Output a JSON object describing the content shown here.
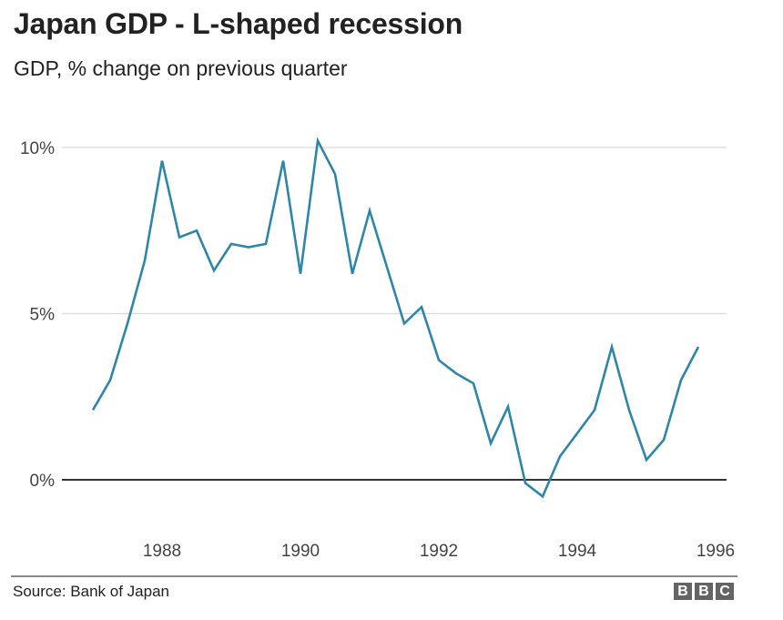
{
  "chart_data": {
    "type": "line",
    "title": "Japan GDP - L-shaped recession",
    "subtitle": "GDP, % change on previous quarter",
    "xlabel": "",
    "ylabel": "",
    "ylim": [
      -1,
      10.5
    ],
    "xlim": [
      1986.75,
      1996.1
    ],
    "y_ticks": [
      {
        "value": 10,
        "label": "10%"
      },
      {
        "value": 5,
        "label": "5%"
      },
      {
        "value": 0,
        "label": "0%"
      }
    ],
    "x_ticks": [
      {
        "value": 1988,
        "label": "1988"
      },
      {
        "value": 1990,
        "label": "1990"
      },
      {
        "value": 1992,
        "label": "1992"
      },
      {
        "value": 1994,
        "label": "1994"
      },
      {
        "value": 1996,
        "label": "1996"
      }
    ],
    "grid": true,
    "series": [
      {
        "name": "Japan GDP",
        "color": "#2e86a8",
        "x_start": 1987.0,
        "x_step": 0.25,
        "values": [
          2.1,
          3.0,
          4.7,
          6.6,
          9.6,
          7.3,
          7.5,
          6.3,
          7.1,
          7.0,
          7.1,
          9.6,
          6.2,
          10.2,
          9.2,
          6.2,
          8.1,
          6.4,
          4.7,
          5.2,
          3.6,
          3.2,
          2.9,
          1.1,
          2.2,
          -0.1,
          -0.5,
          0.7,
          1.4,
          2.1,
          4.0,
          2.1,
          0.6,
          1.2,
          3.0,
          4.0
        ]
      }
    ],
    "colors": {
      "line": "#2e86a8",
      "gridline": "#d9d9d9",
      "zero_line": "#333333"
    }
  },
  "footer": {
    "source": "Source: Bank of Japan",
    "logo_letters": [
      "B",
      "B",
      "C"
    ]
  }
}
